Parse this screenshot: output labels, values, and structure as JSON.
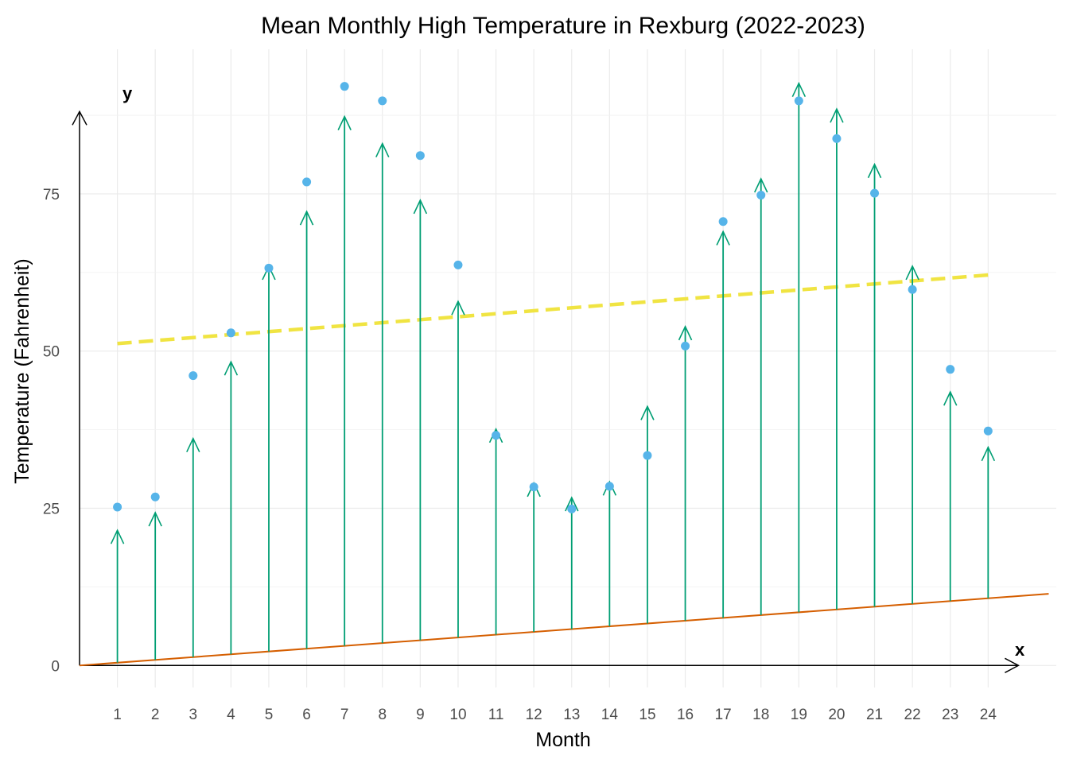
{
  "chart_data": {
    "type": "scatter",
    "title": "Mean Monthly High Temperature in Rexburg (2022-2023)",
    "xlabel": "Month",
    "ylabel": "Temperature (Fahrenheit)",
    "x_axis_letter": "x",
    "y_axis_letter": "y",
    "x": [
      1,
      2,
      3,
      4,
      5,
      6,
      7,
      8,
      9,
      10,
      11,
      12,
      13,
      14,
      15,
      16,
      17,
      18,
      19,
      20,
      21,
      22,
      23,
      24
    ],
    "x_ticks": [
      "1",
      "2",
      "3",
      "4",
      "5",
      "6",
      "7",
      "8",
      "9",
      "10",
      "11",
      "12",
      "13",
      "14",
      "15",
      "16",
      "17",
      "18",
      "19",
      "20",
      "21",
      "22",
      "23",
      "24"
    ],
    "y_ticks": [
      "0",
      "25",
      "50",
      "75"
    ],
    "y_tick_values": [
      0,
      25,
      50,
      75
    ],
    "xlim": [
      0,
      25.8
    ],
    "ylim": [
      -3.5,
      98
    ],
    "grid": true,
    "series": [
      {
        "kind": "points",
        "color": "#56B4E9",
        "values": [
          25.2,
          26.8,
          46.1,
          52.9,
          63.2,
          76.9,
          92.1,
          89.8,
          81.1,
          63.7,
          36.6,
          28.4,
          24.9,
          28.5,
          33.4,
          50.8,
          70.6,
          74.8,
          89.8,
          83.8,
          75.1,
          59.8,
          47.1,
          37.3
        ]
      },
      {
        "kind": "vectors",
        "color": "#009E73",
        "values": [
          21.5,
          24.3,
          36.1,
          48.3,
          63.5,
          72.2,
          87.3,
          83.0,
          74.0,
          57.9,
          37.6,
          29.0,
          26.7,
          29.2,
          41.2,
          53.9,
          69.0,
          77.4,
          92.6,
          88.5,
          79.7,
          63.5,
          43.5,
          34.7
        ]
      },
      {
        "kind": "line",
        "color": "#D55E00",
        "x": [
          0,
          25.6
        ],
        "values": [
          0,
          11.4
        ]
      },
      {
        "kind": "dashed-line",
        "color": "#F0E442",
        "x": [
          1,
          24
        ],
        "values": [
          51.2,
          62.1
        ]
      }
    ]
  }
}
